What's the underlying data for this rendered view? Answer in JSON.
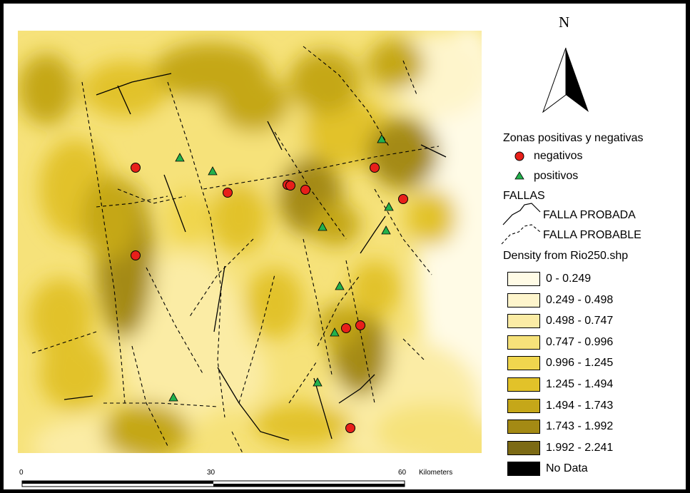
{
  "north_arrow": {
    "letter": "N",
    "icon": "north-arrow-icon"
  },
  "legend": {
    "points_title": "Zonas positivas y negativas",
    "negativos": {
      "label": "negativos",
      "color": "#e8201a",
      "icon": "red-circle-icon"
    },
    "positivos": {
      "label": "positivos",
      "color": "#22b14c",
      "icon": "green-triangle-icon"
    },
    "fallas_title": "FALLAS",
    "falla_probada": {
      "label": "FALLA PROBADA",
      "icon": "solid-line-icon"
    },
    "falla_probable": {
      "label": "FALLA PROBABLE",
      "icon": "dashed-line-icon"
    },
    "density_title": "Density from Rio250.shp",
    "classes": [
      {
        "label": "0 - 0.249",
        "color": "#fffbe6"
      },
      {
        "label": "0.249 - 0.498",
        "color": "#fef5cc"
      },
      {
        "label": "0.498 - 0.747",
        "color": "#fbeca5"
      },
      {
        "label": "0.747 - 0.996",
        "color": "#f6e27a"
      },
      {
        "label": "0.996 - 1.245",
        "color": "#f0d64e"
      },
      {
        "label": "1.245 - 1.494",
        "color": "#e2c229"
      },
      {
        "label": "1.494 - 1.743",
        "color": "#c5a719"
      },
      {
        "label": "1.743 - 1.992",
        "color": "#a48a14"
      },
      {
        "label": "1.992 - 2.241",
        "color": "#7c6a14"
      },
      {
        "label": "No Data",
        "color": "#000000"
      }
    ]
  },
  "scale_bar": {
    "tick_0": "0",
    "tick_30": "30",
    "tick_60": "60",
    "unit": "Kilometers"
  }
}
